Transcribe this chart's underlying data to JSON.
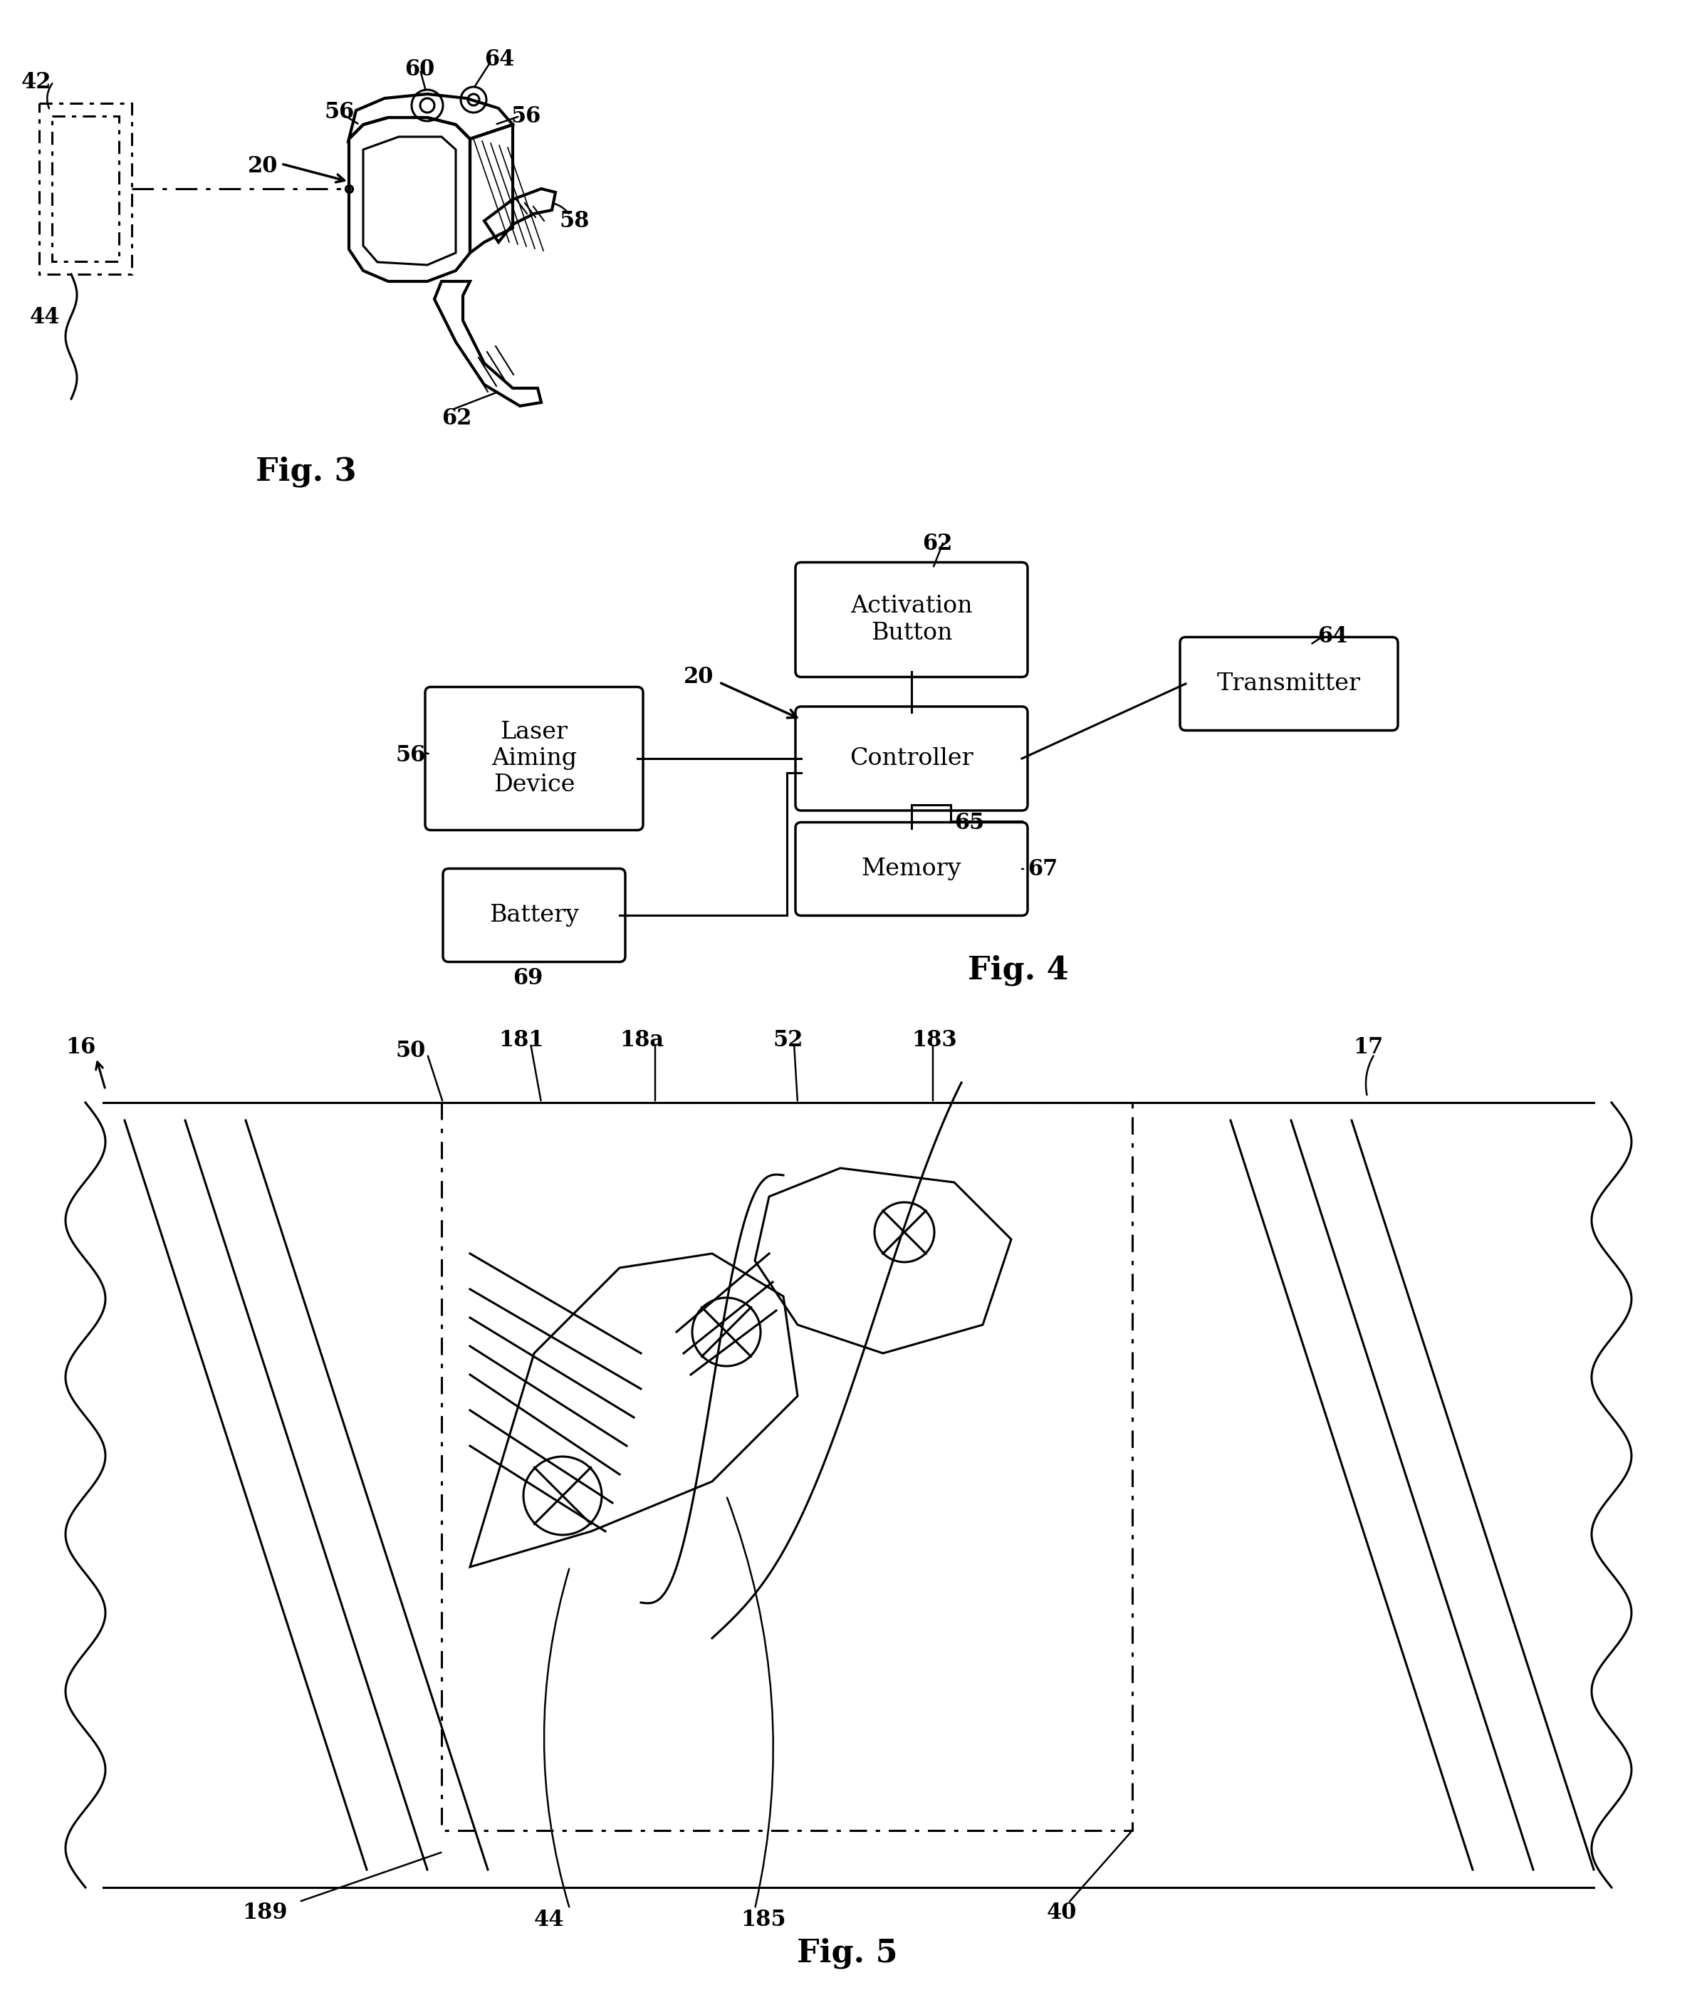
{
  "bg_color": "#ffffff",
  "line_color": "#000000",
  "fig3_label": "Fig. 3",
  "fig4_label": "Fig. 4",
  "fig5_label": "Fig. 5"
}
